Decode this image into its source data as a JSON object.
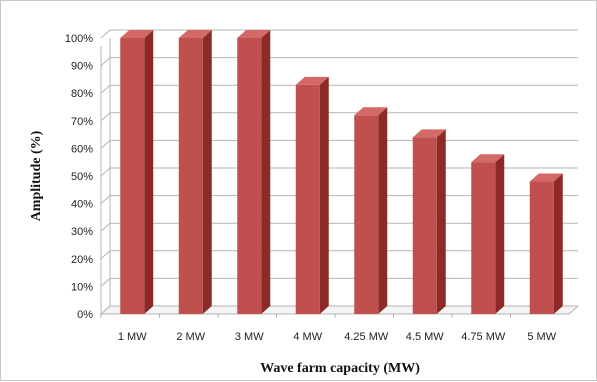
{
  "chart_data": {
    "type": "bar",
    "title": "",
    "xlabel": "Wave farm capacity (MW)",
    "ylabel": "Amplitude (%)",
    "categories": [
      "1 MW",
      "2 MW",
      "3 MW",
      "4 MW",
      "4.25 MW",
      "4.5 MW",
      "4.75 MW",
      "5 MW"
    ],
    "values": [
      100,
      100,
      100,
      83,
      72,
      64,
      55,
      48
    ],
    "ylim": [
      0,
      100
    ],
    "yticks": [
      0,
      10,
      20,
      30,
      40,
      50,
      60,
      70,
      80,
      90,
      100
    ],
    "ytick_format": "%",
    "grid": true,
    "legend": "none",
    "style": "3d-column",
    "colors": {
      "bar_front": "#c0504d",
      "bar_side": "#8b2a27",
      "bar_top": "#d46a66",
      "grid": "#b4b4b4"
    }
  }
}
